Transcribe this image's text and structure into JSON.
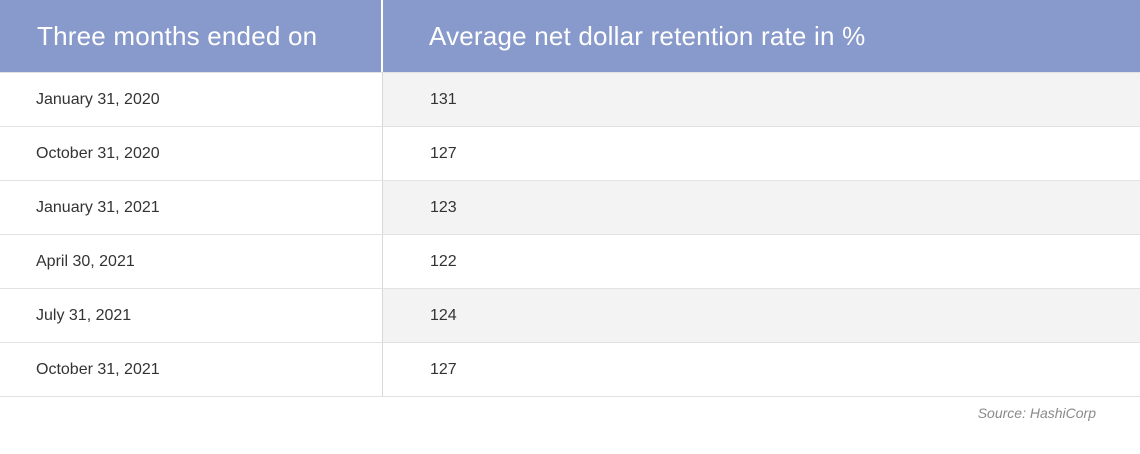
{
  "table": {
    "headers": [
      "Three months ended on",
      "Average net dollar retention rate in %"
    ],
    "rows": [
      {
        "date": "January 31, 2020",
        "rate": "131"
      },
      {
        "date": "October 31, 2020",
        "rate": "127"
      },
      {
        "date": "January 31, 2021",
        "rate": "123"
      },
      {
        "date": "April 30, 2021",
        "rate": "122"
      },
      {
        "date": "July 31, 2021",
        "rate": "124"
      },
      {
        "date": "October 31, 2021",
        "rate": "127"
      }
    ]
  },
  "source": "Source: HashiCorp",
  "colors": {
    "header_bg": "#8899cb",
    "stripe_bg": "#f3f3f3"
  }
}
